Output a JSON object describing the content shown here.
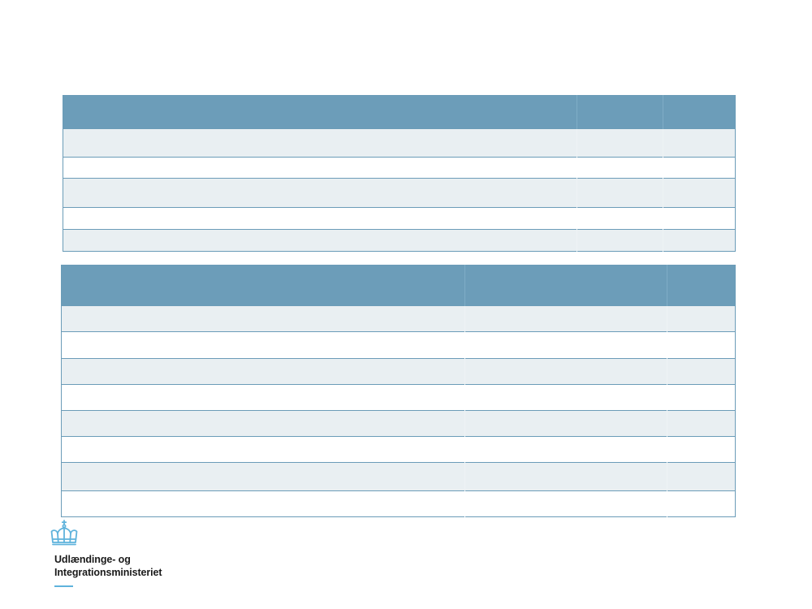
{
  "organization": {
    "name_line1": "Udlændinge- og",
    "name_line2": "Integrationsministeriet"
  },
  "table1": {
    "headers": [
      "",
      "",
      ""
    ],
    "rows": [
      [
        "",
        "",
        ""
      ],
      [
        "",
        "",
        ""
      ],
      [
        "",
        "",
        ""
      ],
      [
        "",
        "",
        ""
      ],
      [
        "",
        "",
        ""
      ]
    ]
  },
  "table2": {
    "headers": [
      "",
      "",
      ""
    ],
    "rows": [
      [
        "",
        "",
        ""
      ],
      [
        "",
        "",
        ""
      ],
      [
        "",
        "",
        ""
      ],
      [
        "",
        "",
        ""
      ],
      [
        "",
        "",
        ""
      ],
      [
        "",
        "",
        ""
      ],
      [
        "",
        "",
        ""
      ],
      [
        "",
        "",
        ""
      ]
    ]
  },
  "colors": {
    "header": "#6c9db9",
    "row_alt": "#e9eff2",
    "accent": "#5fb3dc"
  },
  "icons": {
    "logo": "crown-icon"
  }
}
